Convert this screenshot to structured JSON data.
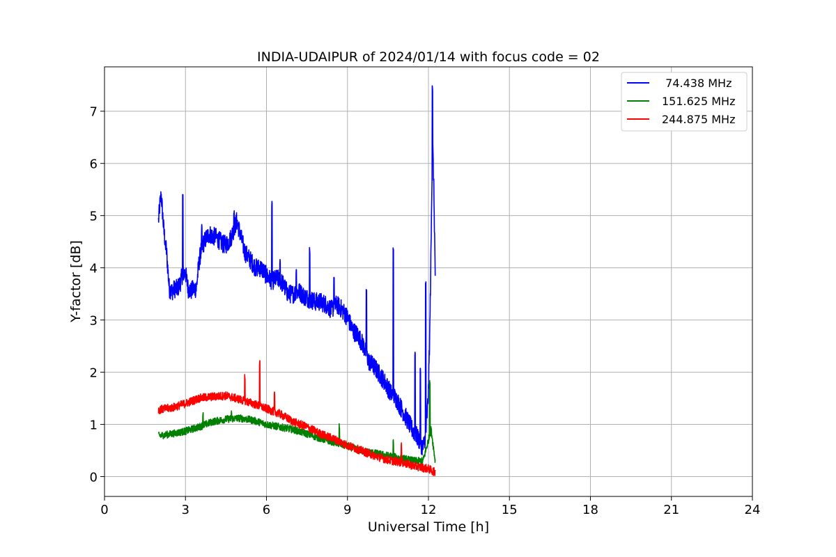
{
  "chart_data": {
    "type": "line",
    "title": "INDIA-UDAIPUR of 2024/01/14 with focus code = 02",
    "xlabel": "Universal Time [h]",
    "ylabel": "Y-factor [dB]",
    "xlim": [
      0,
      24
    ],
    "ylim": [
      -0.38,
      7.85
    ],
    "xticks": [
      0,
      3,
      6,
      9,
      12,
      15,
      18,
      21,
      24
    ],
    "yticks": [
      0,
      1,
      2,
      3,
      4,
      5,
      6,
      7
    ],
    "grid": true,
    "legend_position": "top-right",
    "series": [
      {
        "name": "  74.438 MHz",
        "color": "#0000ff",
        "noise": 0.18,
        "points": [
          [
            2.0,
            4.9
          ],
          [
            2.05,
            5.2
          ],
          [
            2.1,
            5.4
          ],
          [
            2.2,
            4.7
          ],
          [
            2.3,
            4.3
          ],
          [
            2.4,
            3.6
          ],
          [
            2.5,
            3.55
          ],
          [
            2.6,
            3.6
          ],
          [
            2.7,
            3.6
          ],
          [
            2.8,
            3.7
          ],
          [
            2.9,
            3.9
          ],
          [
            3.0,
            3.9
          ],
          [
            3.1,
            3.6
          ],
          [
            3.2,
            3.55
          ],
          [
            3.3,
            3.6
          ],
          [
            3.4,
            3.6
          ],
          [
            3.5,
            4.1
          ],
          [
            3.6,
            4.4
          ],
          [
            3.7,
            4.5
          ],
          [
            3.8,
            4.6
          ],
          [
            3.9,
            4.65
          ],
          [
            4.0,
            4.6
          ],
          [
            4.1,
            4.6
          ],
          [
            4.2,
            4.55
          ],
          [
            4.3,
            4.5
          ],
          [
            4.4,
            4.45
          ],
          [
            4.5,
            4.45
          ],
          [
            4.6,
            4.5
          ],
          [
            4.7,
            4.6
          ],
          [
            4.8,
            4.75
          ],
          [
            4.9,
            4.9
          ],
          [
            5.0,
            4.7
          ],
          [
            5.2,
            4.3
          ],
          [
            5.4,
            4.15
          ],
          [
            5.6,
            4.0
          ],
          [
            5.8,
            4.0
          ],
          [
            6.0,
            3.85
          ],
          [
            6.2,
            3.75
          ],
          [
            6.4,
            3.8
          ],
          [
            6.6,
            3.7
          ],
          [
            6.8,
            3.5
          ],
          [
            7.0,
            3.5
          ],
          [
            7.2,
            3.55
          ],
          [
            7.4,
            3.45
          ],
          [
            7.6,
            3.4
          ],
          [
            7.8,
            3.35
          ],
          [
            8.0,
            3.35
          ],
          [
            8.2,
            3.3
          ],
          [
            8.4,
            3.2
          ],
          [
            8.6,
            3.3
          ],
          [
            8.8,
            3.2
          ],
          [
            9.0,
            3.05
          ],
          [
            9.2,
            2.8
          ],
          [
            9.4,
            2.7
          ],
          [
            9.6,
            2.5
          ],
          [
            9.8,
            2.2
          ],
          [
            10.0,
            2.1
          ],
          [
            10.2,
            1.95
          ],
          [
            10.4,
            1.8
          ],
          [
            10.6,
            1.6
          ],
          [
            10.8,
            1.5
          ],
          [
            11.0,
            1.3
          ],
          [
            11.2,
            1.1
          ],
          [
            11.4,
            0.9
          ],
          [
            11.6,
            0.75
          ],
          [
            11.8,
            0.55
          ],
          [
            11.9,
            0.8
          ],
          [
            12.0,
            1.6
          ],
          [
            12.05,
            2.8
          ],
          [
            12.1,
            4.5
          ],
          [
            12.15,
            6.5
          ],
          [
            12.2,
            5.5
          ],
          [
            12.25,
            3.9
          ]
        ],
        "spikes": [
          [
            2.25,
            4.5
          ],
          [
            2.9,
            5.5
          ],
          [
            3.6,
            4.9
          ],
          [
            4.8,
            5.1
          ],
          [
            6.2,
            5.3
          ],
          [
            6.5,
            4.2
          ],
          [
            7.1,
            4.0
          ],
          [
            7.6,
            4.4
          ],
          [
            8.5,
            3.9
          ],
          [
            9.7,
            3.65
          ],
          [
            10.7,
            4.45
          ],
          [
            11.5,
            2.4
          ],
          [
            11.7,
            2.1
          ],
          [
            11.9,
            3.8
          ],
          [
            12.15,
            7.5
          ]
        ]
      },
      {
        "name": "151.625 MHz",
        "color": "#008000",
        "noise": 0.07,
        "points": [
          [
            2.0,
            0.78
          ],
          [
            2.5,
            0.82
          ],
          [
            3.0,
            0.87
          ],
          [
            3.5,
            0.95
          ],
          [
            4.0,
            1.05
          ],
          [
            4.5,
            1.1
          ],
          [
            5.0,
            1.12
          ],
          [
            5.5,
            1.08
          ],
          [
            6.0,
            1.0
          ],
          [
            6.5,
            0.95
          ],
          [
            7.0,
            0.9
          ],
          [
            7.5,
            0.82
          ],
          [
            8.0,
            0.73
          ],
          [
            8.5,
            0.66
          ],
          [
            9.0,
            0.58
          ],
          [
            9.5,
            0.5
          ],
          [
            10.0,
            0.45
          ],
          [
            10.5,
            0.4
          ],
          [
            11.0,
            0.35
          ],
          [
            11.5,
            0.3
          ],
          [
            11.8,
            0.3
          ],
          [
            12.0,
            0.7
          ],
          [
            12.1,
            0.9
          ],
          [
            12.2,
            0.5
          ],
          [
            12.25,
            0.3
          ]
        ],
        "spikes": [
          [
            3.65,
            1.28
          ],
          [
            4.7,
            1.3
          ],
          [
            8.7,
            1.05
          ],
          [
            10.7,
            0.75
          ],
          [
            12.05,
            1.85
          ]
        ]
      },
      {
        "name": "244.875 MHz",
        "color": "#ff0000",
        "noise": 0.08,
        "points": [
          [
            2.0,
            1.28
          ],
          [
            2.5,
            1.32
          ],
          [
            3.0,
            1.4
          ],
          [
            3.5,
            1.5
          ],
          [
            4.0,
            1.53
          ],
          [
            4.5,
            1.55
          ],
          [
            5.0,
            1.48
          ],
          [
            5.5,
            1.4
          ],
          [
            6.0,
            1.3
          ],
          [
            6.5,
            1.2
          ],
          [
            7.0,
            1.05
          ],
          [
            7.5,
            0.95
          ],
          [
            8.0,
            0.82
          ],
          [
            8.5,
            0.72
          ],
          [
            9.0,
            0.6
          ],
          [
            9.5,
            0.5
          ],
          [
            10.0,
            0.4
          ],
          [
            10.5,
            0.32
          ],
          [
            11.0,
            0.27
          ],
          [
            11.5,
            0.2
          ],
          [
            12.0,
            0.15
          ],
          [
            12.25,
            0.08
          ]
        ],
        "spikes": [
          [
            5.2,
            2.0
          ],
          [
            5.75,
            2.25
          ],
          [
            6.3,
            1.7
          ],
          [
            11.0,
            0.65
          ]
        ]
      }
    ]
  }
}
